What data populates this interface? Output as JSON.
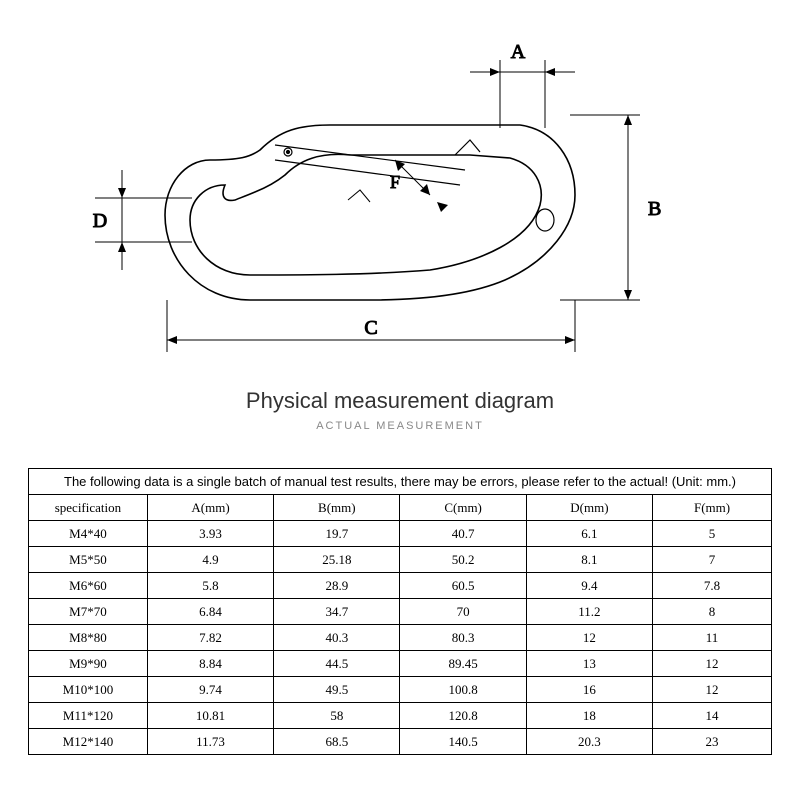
{
  "title": {
    "main": "Physical measurement diagram",
    "sub": "ACTUAL MEASUREMENT",
    "main_fontsize": 22,
    "sub_fontsize": 11
  },
  "diagram": {
    "labels": {
      "A": "A",
      "B": "B",
      "C": "C",
      "D": "D",
      "F": "F"
    },
    "stroke": "#000000",
    "stroke_width": 1,
    "outline_width": 1.6,
    "label_fontsize": 20
  },
  "table": {
    "note": "The following data is a single batch of manual test results, there may be errors, please refer to the actual! (Unit: mm.)",
    "font_size": 13,
    "columns": [
      "specification",
      "A(mm)",
      "B(mm)",
      "C(mm)",
      "D(mm)",
      "F(mm)"
    ],
    "col_widths_pct": [
      16,
      17,
      17,
      17,
      17,
      16
    ],
    "rows": [
      [
        "M4*40",
        "3.93",
        "19.7",
        "40.7",
        "6.1",
        "5"
      ],
      [
        "M5*50",
        "4.9",
        "25.18",
        "50.2",
        "8.1",
        "7"
      ],
      [
        "M6*60",
        "5.8",
        "28.9",
        "60.5",
        "9.4",
        "7.8"
      ],
      [
        "M7*70",
        "6.84",
        "34.7",
        "70",
        "11.2",
        "8"
      ],
      [
        "M8*80",
        "7.82",
        "40.3",
        "80.3",
        "12",
        "11"
      ],
      [
        "M9*90",
        "8.84",
        "44.5",
        "89.45",
        "13",
        "12"
      ],
      [
        "M10*100",
        "9.74",
        "49.5",
        "100.8",
        "16",
        "12"
      ],
      [
        "M11*120",
        "10.81",
        "58",
        "120.8",
        "18",
        "14"
      ],
      [
        "M12*140",
        "11.73",
        "68.5",
        "140.5",
        "20.3",
        "23"
      ]
    ]
  },
  "colors": {
    "background": "#ffffff",
    "text": "#000000",
    "title": "#333333",
    "subtitle": "#888888",
    "border": "#000000"
  }
}
